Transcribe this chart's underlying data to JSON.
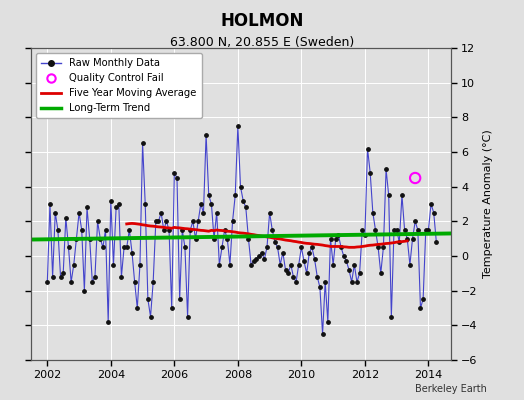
{
  "title": "HOLMON",
  "subtitle": "63.800 N, 20.855 E (Sweden)",
  "ylabel": "Temperature Anomaly (°C)",
  "credit": "Berkeley Earth",
  "xlim": [
    2001.5,
    2014.7
  ],
  "ylim": [
    -6,
    12
  ],
  "yticks": [
    -6,
    -4,
    -2,
    0,
    2,
    4,
    6,
    8,
    10,
    12
  ],
  "xticks": [
    2002,
    2004,
    2006,
    2008,
    2010,
    2012,
    2014
  ],
  "background_color": "#e0e0e0",
  "plot_bg_color": "#e0e0e0",
  "raw_color": "#4444cc",
  "raw_marker_color": "#111111",
  "ma_color": "#dd0000",
  "trend_color": "#00aa00",
  "qc_color": "#ff00ff",
  "raw_monthly_x": [
    2002.0,
    2002.083,
    2002.167,
    2002.25,
    2002.333,
    2002.417,
    2002.5,
    2002.583,
    2002.667,
    2002.75,
    2002.833,
    2002.917,
    2003.0,
    2003.083,
    2003.167,
    2003.25,
    2003.333,
    2003.417,
    2003.5,
    2003.583,
    2003.667,
    2003.75,
    2003.833,
    2003.917,
    2004.0,
    2004.083,
    2004.167,
    2004.25,
    2004.333,
    2004.417,
    2004.5,
    2004.583,
    2004.667,
    2004.75,
    2004.833,
    2004.917,
    2005.0,
    2005.083,
    2005.167,
    2005.25,
    2005.333,
    2005.417,
    2005.5,
    2005.583,
    2005.667,
    2005.75,
    2005.833,
    2005.917,
    2006.0,
    2006.083,
    2006.167,
    2006.25,
    2006.333,
    2006.417,
    2006.5,
    2006.583,
    2006.667,
    2006.75,
    2006.833,
    2006.917,
    2007.0,
    2007.083,
    2007.167,
    2007.25,
    2007.333,
    2007.417,
    2007.5,
    2007.583,
    2007.667,
    2007.75,
    2007.833,
    2007.917,
    2008.0,
    2008.083,
    2008.167,
    2008.25,
    2008.333,
    2008.417,
    2008.5,
    2008.583,
    2008.667,
    2008.75,
    2008.833,
    2008.917,
    2009.0,
    2009.083,
    2009.167,
    2009.25,
    2009.333,
    2009.417,
    2009.5,
    2009.583,
    2009.667,
    2009.75,
    2009.833,
    2009.917,
    2010.0,
    2010.083,
    2010.167,
    2010.25,
    2010.333,
    2010.417,
    2010.5,
    2010.583,
    2010.667,
    2010.75,
    2010.833,
    2010.917,
    2011.0,
    2011.083,
    2011.167,
    2011.25,
    2011.333,
    2011.417,
    2011.5,
    2011.583,
    2011.667,
    2011.75,
    2011.833,
    2011.917,
    2012.0,
    2012.083,
    2012.167,
    2012.25,
    2012.333,
    2012.417,
    2012.5,
    2012.583,
    2012.667,
    2012.75,
    2012.833,
    2012.917,
    2013.0,
    2013.083,
    2013.167,
    2013.25,
    2013.333,
    2013.417,
    2013.5,
    2013.583,
    2013.667,
    2013.75,
    2013.833,
    2013.917,
    2014.0,
    2014.083,
    2014.167,
    2014.25
  ],
  "raw_monthly_y": [
    -1.5,
    3.0,
    -1.2,
    2.5,
    1.5,
    -1.2,
    -1.0,
    2.2,
    0.5,
    -1.5,
    -0.5,
    1.0,
    2.5,
    1.5,
    -2.0,
    2.8,
    1.0,
    -1.5,
    -1.2,
    2.0,
    1.0,
    0.5,
    1.5,
    -3.8,
    3.2,
    -0.5,
    2.8,
    3.0,
    -1.2,
    0.5,
    0.5,
    1.5,
    0.2,
    -1.5,
    -3.0,
    -0.5,
    6.5,
    3.0,
    -2.5,
    -3.5,
    -1.5,
    2.0,
    2.0,
    2.5,
    1.5,
    2.0,
    1.5,
    -3.0,
    4.8,
    4.5,
    -2.5,
    1.5,
    0.5,
    -3.5,
    1.5,
    2.0,
    1.0,
    2.0,
    3.0,
    2.5,
    7.0,
    3.5,
    3.0,
    1.0,
    2.5,
    -0.5,
    0.5,
    1.5,
    1.0,
    -0.5,
    2.0,
    3.5,
    7.5,
    4.0,
    3.2,
    2.8,
    1.0,
    -0.5,
    -0.3,
    -0.2,
    0.0,
    0.2,
    -0.2,
    0.5,
    2.5,
    1.5,
    0.8,
    0.5,
    -0.5,
    0.2,
    -0.8,
    -1.0,
    -0.5,
    -1.2,
    -1.5,
    -0.5,
    0.5,
    -0.3,
    -1.0,
    0.2,
    0.5,
    -0.2,
    -1.2,
    -1.8,
    -4.5,
    -1.5,
    -3.8,
    1.0,
    -0.5,
    1.0,
    1.2,
    0.5,
    0.0,
    -0.3,
    -0.8,
    -1.5,
    -0.5,
    -1.5,
    -1.0,
    1.5,
    1.2,
    6.2,
    4.8,
    2.5,
    1.5,
    0.5,
    -1.0,
    0.5,
    5.0,
    3.5,
    -3.5,
    1.5,
    1.5,
    0.8,
    3.5,
    1.5,
    1.0,
    -0.5,
    1.0,
    2.0,
    1.5,
    -3.0,
    -2.5,
    1.5,
    1.5,
    3.0,
    2.5,
    0.8
  ],
  "qc_fail_x": [
    2013.583
  ],
  "qc_fail_y": [
    4.5
  ],
  "moving_avg_x": [
    2004.5,
    2004.583,
    2004.667,
    2004.75,
    2004.833,
    2004.917,
    2005.0,
    2005.083,
    2005.167,
    2005.25,
    2005.333,
    2005.417,
    2005.5,
    2005.583,
    2005.667,
    2005.75,
    2005.833,
    2005.917,
    2006.0,
    2006.083,
    2006.167,
    2006.25,
    2006.333,
    2006.417,
    2006.5,
    2006.583,
    2006.667,
    2006.75,
    2006.833,
    2006.917,
    2007.0,
    2007.083,
    2007.167,
    2007.25,
    2007.333,
    2007.417,
    2007.5,
    2007.583,
    2007.667,
    2007.75,
    2007.833,
    2007.917,
    2008.0,
    2008.083,
    2008.167,
    2008.25,
    2008.333,
    2008.417,
    2008.5,
    2008.583,
    2008.667,
    2008.75,
    2008.833,
    2008.917,
    2009.0,
    2009.083,
    2009.167,
    2009.25,
    2009.333,
    2009.417,
    2009.5,
    2009.583,
    2009.667,
    2009.75,
    2009.833,
    2009.917,
    2010.0,
    2010.083,
    2010.167,
    2010.25,
    2010.333,
    2010.417,
    2010.5,
    2010.583,
    2010.667,
    2010.75,
    2010.833,
    2010.917,
    2011.0,
    2011.083,
    2011.167,
    2011.25,
    2011.333,
    2011.417,
    2011.5,
    2011.583,
    2011.667,
    2011.75,
    2011.833,
    2011.917,
    2012.0,
    2012.083,
    2012.167,
    2012.25,
    2012.333,
    2012.417,
    2012.5,
    2012.583,
    2012.667,
    2012.75,
    2012.833,
    2012.917,
    2013.0,
    2013.083,
    2013.167,
    2013.25,
    2013.333
  ],
  "moving_avg_y": [
    1.85,
    1.87,
    1.88,
    1.87,
    1.85,
    1.83,
    1.8,
    1.78,
    1.75,
    1.73,
    1.72,
    1.7,
    1.68,
    1.67,
    1.65,
    1.63,
    1.62,
    1.6,
    1.65,
    1.63,
    1.62,
    1.6,
    1.58,
    1.57,
    1.55,
    1.53,
    1.52,
    1.5,
    1.48,
    1.47,
    1.45,
    1.43,
    1.48,
    1.46,
    1.5,
    1.48,
    1.47,
    1.45,
    1.43,
    1.42,
    1.4,
    1.38,
    1.35,
    1.33,
    1.32,
    1.3,
    1.28,
    1.25,
    1.23,
    1.2,
    1.18,
    1.15,
    1.13,
    1.1,
    1.08,
    1.05,
    1.02,
    1.0,
    0.98,
    0.95,
    0.92,
    0.9,
    0.88,
    0.85,
    0.83,
    0.8,
    0.78,
    0.75,
    0.73,
    0.72,
    0.7,
    0.68,
    0.67,
    0.65,
    0.63,
    0.6,
    0.58,
    0.55,
    0.55,
    0.55,
    0.55,
    0.55,
    0.53,
    0.52,
    0.5,
    0.5,
    0.5,
    0.52,
    0.53,
    0.55,
    0.57,
    0.6,
    0.62,
    0.63,
    0.65,
    0.67,
    0.68,
    0.7,
    0.72,
    0.73,
    0.75,
    0.77,
    0.8,
    0.82,
    0.83,
    0.85,
    0.87
  ],
  "trend_x": [
    2001.5,
    2014.7
  ],
  "trend_y": [
    0.95,
    1.3
  ]
}
